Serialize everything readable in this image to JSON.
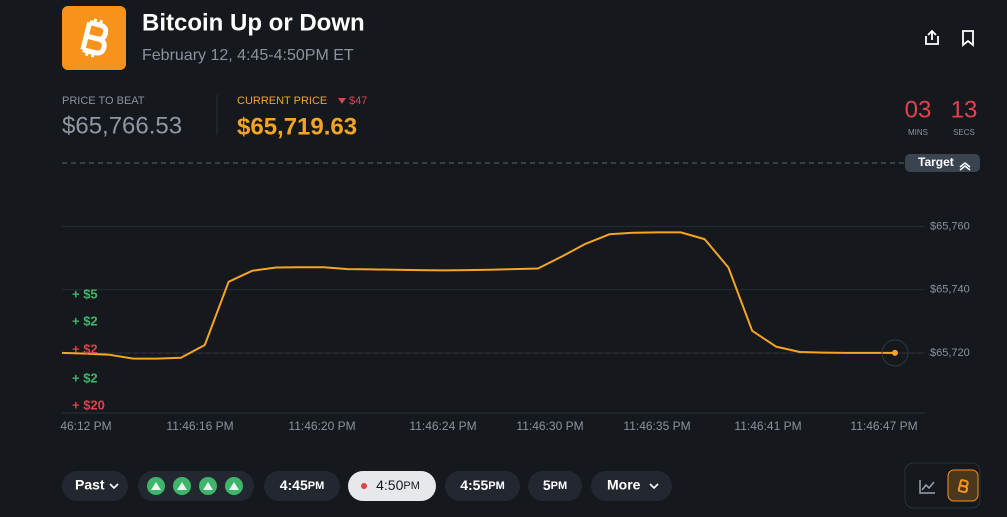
{
  "header": {
    "title": "Bitcoin Up or Down",
    "subtitle": "February 12, 4:45-4:50PM ET"
  },
  "prices": {
    "beat_label": "PRICE TO BEAT",
    "beat_value": "$65,766.53",
    "current_label": "CURRENT PRICE",
    "change": "$47",
    "current_value": "$65,719.63"
  },
  "countdown": {
    "minutes": "03",
    "minutes_label": "MINS",
    "seconds": "13",
    "seconds_label": "SECS"
  },
  "target_label": "Target",
  "trades": [
    {
      "label": "+ $5",
      "color": "#3fb56b"
    },
    {
      "label": "+ $2",
      "color": "#3fb56b"
    },
    {
      "label": "+ $2",
      "color": "#d9434e"
    },
    {
      "label": "+ $2",
      "color": "#3fb56b"
    },
    {
      "label": "+ $20",
      "color": "#d9434e"
    }
  ],
  "chart_data": {
    "type": "line",
    "color": "#f5a524",
    "values": [
      65720.0,
      65719.8,
      65719.4,
      65718.2,
      65718.2,
      65718.5,
      65722.5,
      65742.5,
      65746.0,
      65747.0,
      65747.1,
      65747.1,
      65746.5,
      65746.4,
      65746.3,
      65746.2,
      65746.1,
      65746.2,
      65746.3,
      65746.5,
      65746.7,
      65750.5,
      65754.5,
      65757.5,
      65758.0,
      65758.1,
      65758.1,
      65756.0,
      65747.0,
      65727.0,
      65722.0,
      65720.3,
      65720.1,
      65720.0,
      65720.0,
      65720.0
    ],
    "ylim": [
      65701,
      65780
    ],
    "yticks": [
      {
        "value": 65720,
        "label": "$65,720"
      },
      {
        "value": 65740,
        "label": "$65,740"
      },
      {
        "value": 65760,
        "label": "$65,760"
      }
    ],
    "xtick_labels": [
      "46:12 PM",
      "11:46:16 PM",
      "11:46:20 PM",
      "11:46:24 PM",
      "11:46:30 PM",
      "11:46:35 PM",
      "11:46:41 PM",
      "11:46:47 PM"
    ],
    "grid": true
  },
  "footer": {
    "past": "Past",
    "times": [
      {
        "time": "4:45",
        "suffix": "PM"
      },
      {
        "time": "4:50",
        "suffix": "PM"
      },
      {
        "time": "4:55",
        "suffix": "PM"
      },
      {
        "time": "5",
        "suffix": "PM"
      }
    ],
    "more": "More"
  }
}
